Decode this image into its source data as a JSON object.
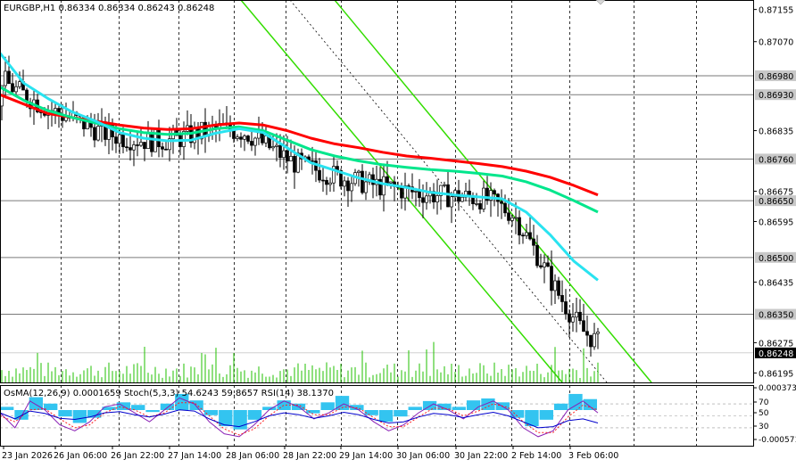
{
  "chart_data": {
    "type": "candlestick",
    "symbol": "EURGBP",
    "timeframe": "H1",
    "ohlc_label": "EURGBP,H1  0.86334 0.86334 0.86243 0.86248",
    "open": 0.86334,
    "high": 0.86334,
    "low": 0.86243,
    "close": 0.86248,
    "ylim": [
      0.8617,
      0.8718
    ],
    "y_ticks": [
      "0.87155",
      "0.87070",
      "0.86835",
      "0.86675",
      "0.86595",
      "0.86435",
      "0.86275",
      "0.86195"
    ],
    "y_tick_values": [
      0.87155,
      0.8707,
      0.86835,
      0.86675,
      0.86595,
      0.86435,
      0.86275,
      0.86195
    ],
    "price_levels": [
      {
        "value": 0.8698,
        "label": "0.86980"
      },
      {
        "value": 0.8693,
        "label": "0.86930"
      },
      {
        "value": 0.8676,
        "label": "0.86760"
      },
      {
        "value": 0.8665,
        "label": "0.86650"
      },
      {
        "value": 0.865,
        "label": "0.86500"
      },
      {
        "value": 0.8635,
        "label": "0.86350"
      }
    ],
    "current_price": {
      "value": 0.86248,
      "label": "0.86248"
    },
    "x_ticks": [
      "23 Jan 2026",
      "26 Jan 06:00",
      "26 Jan 22:00",
      "27 Jan 14:00",
      "28 Jan 06:00",
      "28 Jan 22:00",
      "29 Jan 14:00",
      "30 Jan 06:00",
      "30 Jan 22:00",
      "2 Feb 14:00",
      "3 Feb 06:00"
    ],
    "moving_averages": [
      {
        "color": "#ff0000",
        "values": [
          0.8693,
          0.86905,
          0.8688,
          0.8687,
          0.8686,
          0.8685,
          0.86842,
          0.86838,
          0.8684,
          0.8685,
          0.86855,
          0.8685,
          0.86835,
          0.86815,
          0.868,
          0.8679,
          0.86778,
          0.86768,
          0.86762,
          0.86755,
          0.86748,
          0.8674,
          0.86728,
          0.86712,
          0.8669,
          0.86665
        ]
      },
      {
        "color": "#00e68c",
        "values": [
          0.8695,
          0.86915,
          0.86888,
          0.8687,
          0.86855,
          0.8684,
          0.8683,
          0.86825,
          0.86828,
          0.8684,
          0.86845,
          0.86835,
          0.8681,
          0.86785,
          0.86768,
          0.86755,
          0.86745,
          0.86738,
          0.86732,
          0.86728,
          0.86722,
          0.86715,
          0.867,
          0.86678,
          0.8665,
          0.8662
        ]
      },
      {
        "color": "#29e3f0",
        "values": [
          0.8704,
          0.8696,
          0.8692,
          0.86885,
          0.8686,
          0.8683,
          0.86815,
          0.86808,
          0.8681,
          0.86828,
          0.8684,
          0.8683,
          0.8679,
          0.8675,
          0.8673,
          0.8671,
          0.86695,
          0.86685,
          0.86672,
          0.86665,
          0.8666,
          0.86655,
          0.8662,
          0.8656,
          0.8649,
          0.8644
        ]
      }
    ],
    "oscillator_label": "OsMA(12,26,9) 0.0001659  Stoch(5,3,3) 54.6243 59.8657  RSI(14) 38.1370",
    "oscillator_axis": [
      "0.0003736",
      "70",
      "50",
      "30",
      "-0.000571"
    ],
    "osma_values": [
      5e-05,
      -0.00015,
      0.0002,
      0.0001,
      -0.0001,
      -0.0002,
      -0.00012,
      5e-05,
      0.00012,
      8e-05,
      -3e-05,
      0.0001,
      0.00025,
      0.00015,
      -8e-05,
      -0.00025,
      -0.0003,
      -0.00015,
      5e-05,
      0.00015,
      0.0001,
      -5e-05,
      0.00012,
      0.00022,
      8e-05,
      -8e-05,
      -0.00018,
      -0.0001,
      5e-05,
      0.00014,
      0.0001,
      5e-05,
      0.00015,
      0.00018,
      0.00012,
      -0.00012,
      -0.00025,
      -0.00015,
      0.0001,
      0.00025,
      0.00017
    ],
    "stoch_main": [
      55,
      30,
      75,
      60,
      35,
      25,
      40,
      65,
      70,
      55,
      40,
      60,
      80,
      70,
      40,
      20,
      15,
      35,
      60,
      75,
      65,
      45,
      55,
      70,
      60,
      40,
      25,
      35,
      55,
      70,
      60,
      45,
      65,
      75,
      60,
      30,
      15,
      25,
      60,
      75,
      55
    ],
    "stoch_signal": [
      50,
      40,
      60,
      62,
      45,
      30,
      35,
      55,
      65,
      60,
      48,
      55,
      72,
      72,
      50,
      28,
      18,
      28,
      50,
      68,
      68,
      52,
      52,
      65,
      63,
      47,
      32,
      32,
      48,
      63,
      62,
      50,
      58,
      70,
      64,
      40,
      22,
      22,
      48,
      68,
      60
    ],
    "rsi_values": [
      55,
      45,
      58,
      54,
      46,
      44,
      48,
      55,
      57,
      52,
      48,
      53,
      60,
      58,
      45,
      35,
      32,
      40,
      50,
      55,
      52,
      46,
      50,
      56,
      52,
      44,
      38,
      40,
      48,
      54,
      52,
      47,
      52,
      56,
      50,
      40,
      30,
      32,
      42,
      45,
      38
    ]
  }
}
